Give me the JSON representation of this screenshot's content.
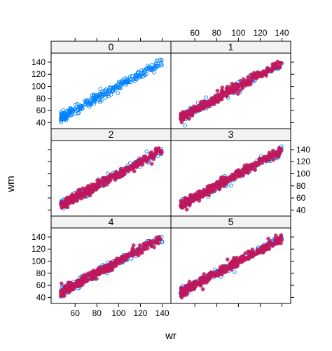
{
  "chart_data": {
    "type": "scatter",
    "layout": "lattice-3x2",
    "xlabel": "wr",
    "ylabel": "wm",
    "xlim": [
      38,
      148
    ],
    "ylim": [
      30,
      155
    ],
    "xticks": [
      60,
      80,
      100,
      120,
      140
    ],
    "yticks": [
      40,
      60,
      80,
      100,
      120,
      140
    ],
    "grid": false,
    "colors": {
      "open_points": "#0080ff",
      "filled_points": "#c0185c",
      "strip": "#f2f2f2"
    },
    "relation": {
      "intercept": 2,
      "slope": 0.98
    },
    "x_range": [
      47,
      140
    ],
    "panels": [
      {
        "label": "0",
        "row": 0,
        "col": 0,
        "series": [
          "open"
        ]
      },
      {
        "label": "1",
        "row": 0,
        "col": 1,
        "series": [
          "open",
          "filled"
        ]
      },
      {
        "label": "2",
        "row": 1,
        "col": 0,
        "series": [
          "open",
          "filled"
        ]
      },
      {
        "label": "3",
        "row": 1,
        "col": 1,
        "series": [
          "open",
          "filled"
        ]
      },
      {
        "label": "4",
        "row": 2,
        "col": 0,
        "series": [
          "open",
          "filled"
        ]
      },
      {
        "label": "5",
        "row": 2,
        "col": 1,
        "series": [
          "open",
          "filled"
        ]
      }
    ]
  }
}
